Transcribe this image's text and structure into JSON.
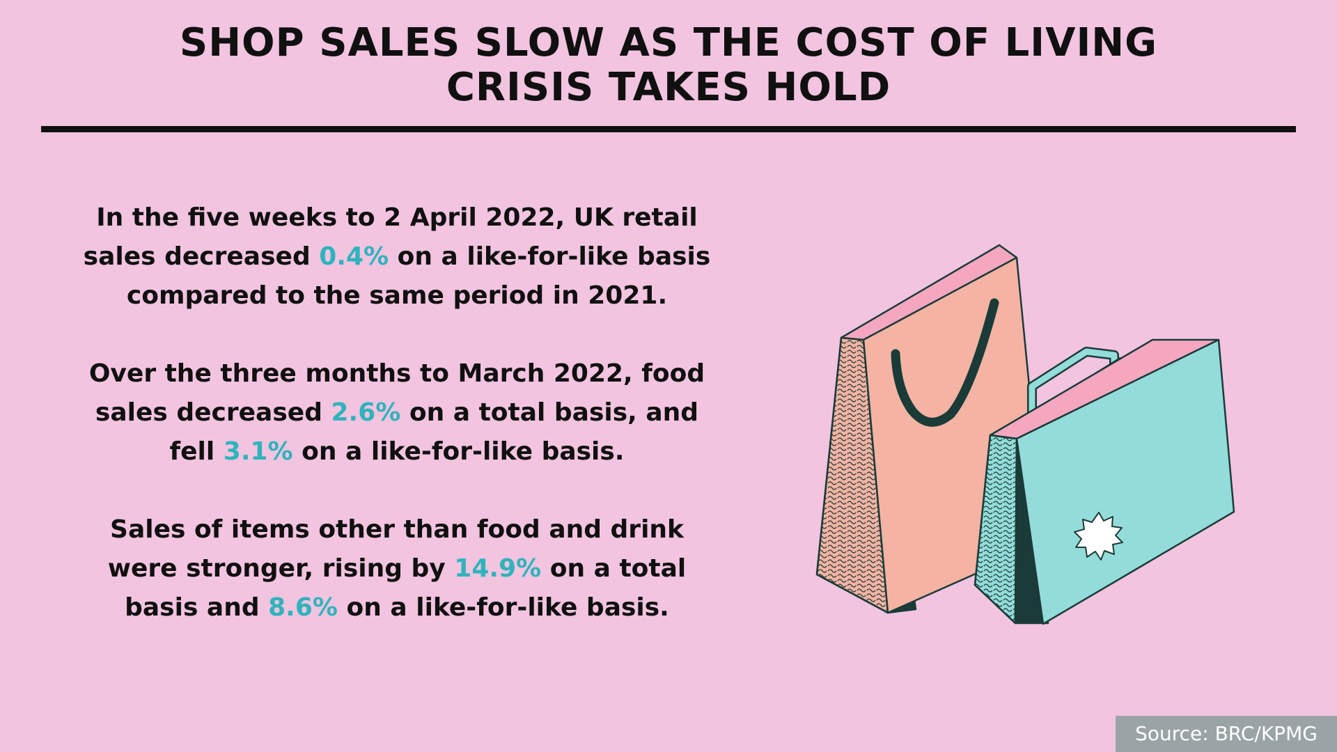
{
  "title": {
    "line1": "SHOP SALES SLOW AS THE COST OF LIVING",
    "line2": "CRISIS TAKES HOLD"
  },
  "paragraphs": [
    {
      "a": "In the five weeks to 2 April 2022, UK retail sales decreased ",
      "v1": "0.4%",
      "b": " on a like-for-like basis compared to the same period in 2021."
    },
    {
      "a": "Over the three months to March 2022, food sales decreased ",
      "v1": "2.6%",
      "b": " on a total basis, and fell ",
      "v2": "3.1%",
      "c": " on a like-for-like basis."
    },
    {
      "a": "Sales of items other than food and drink were stronger, rising by ",
      "v1": "14.9%",
      "b": " on a total basis and ",
      "v2": "8.6%",
      "c": " on a like-for-like basis."
    }
  ],
  "source": "Source: BRC/KPMG",
  "colors": {
    "background": "#f2c4e0",
    "highlight": "#2fb3bd",
    "text": "#101010",
    "source_box": "#9aa4a6",
    "bag_pink": "#f4b3a3",
    "bag_teal": "#93dcd9",
    "bag_dark": "#1a3b38"
  },
  "icons": [
    "shopping-bag-pink-icon",
    "shopping-bag-teal-icon"
  ]
}
